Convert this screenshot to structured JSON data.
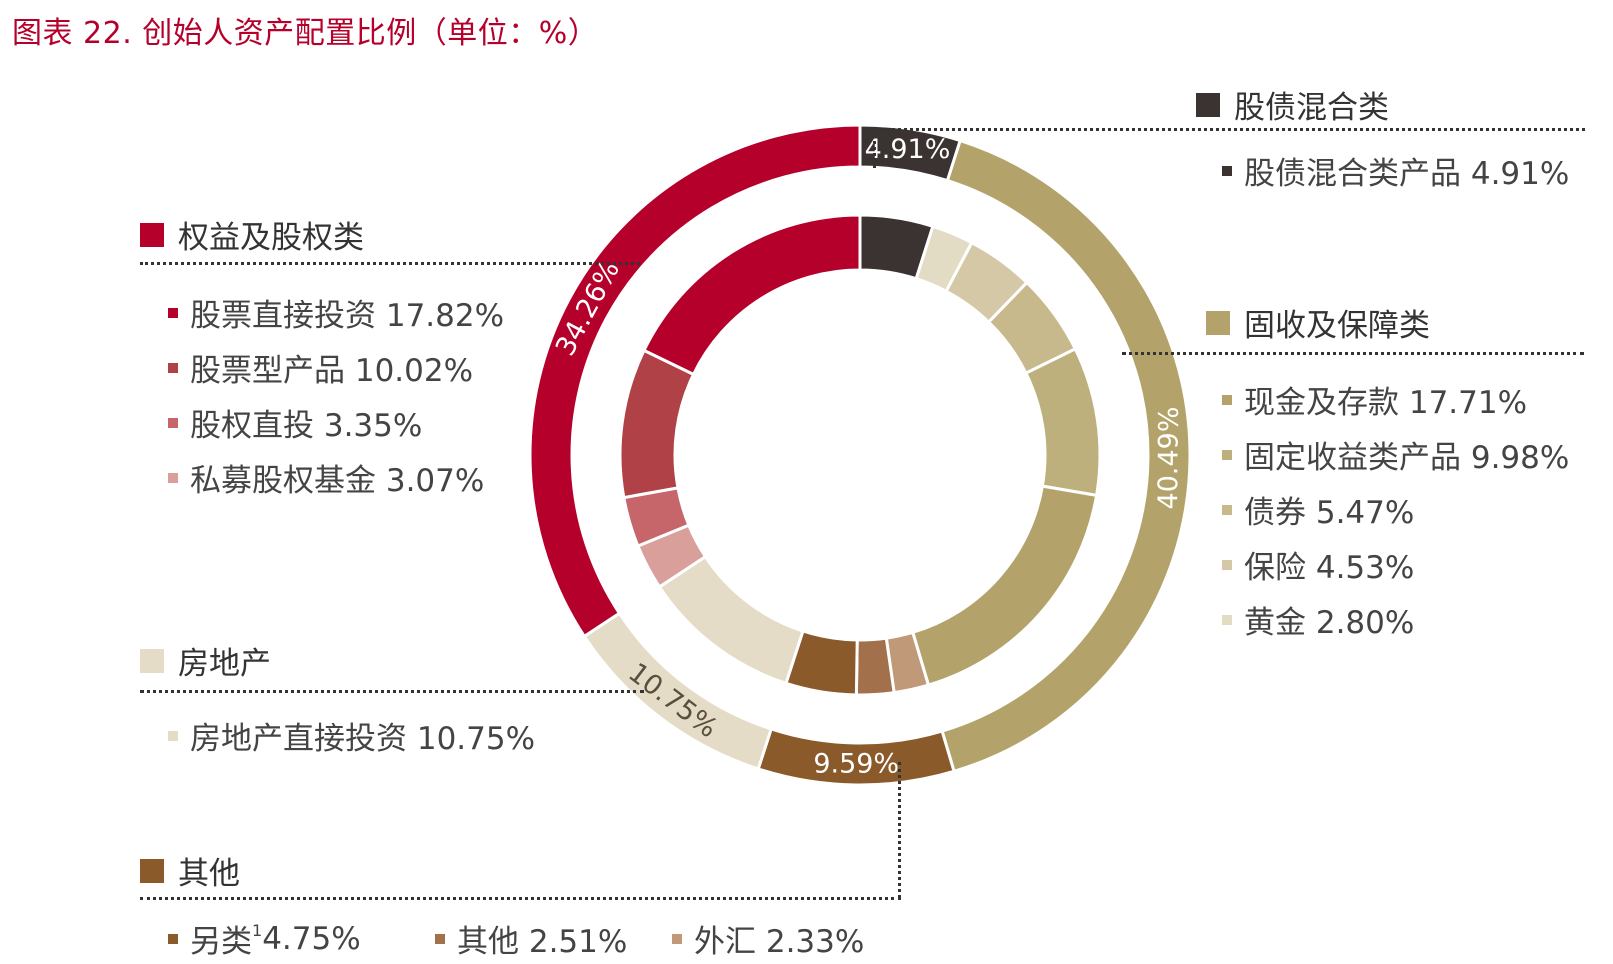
{
  "title": "图表 22. 创始人资产配置比例（单位：%）",
  "colors": {
    "title": "#b5002b",
    "equity": "#b5002b",
    "mixed": "#3a3331",
    "fixed": "#b3a36b",
    "realestate": "#e5dcc7",
    "other": "#8b5a2b"
  },
  "groups": {
    "mixed": {
      "name": "股债混合类",
      "items": [
        {
          "label": "股债混合类产品 4.91%"
        }
      ]
    },
    "equity": {
      "name": "权益及股权类",
      "items": [
        {
          "label": "股票直接投资 17.82%"
        },
        {
          "label": "股票型产品 10.02%"
        },
        {
          "label": "股权直投 3.35%"
        },
        {
          "label": "私募股权基金 3.07%"
        }
      ]
    },
    "fixed": {
      "name": "固收及保障类",
      "items": [
        {
          "label": "现金及存款 17.71%"
        },
        {
          "label": "固定收益类产品 9.98%"
        },
        {
          "label": "债券 5.47%"
        },
        {
          "label": "保险 4.53%"
        },
        {
          "label": "黄金 2.80%"
        }
      ]
    },
    "realestate": {
      "name": "房地产",
      "items": [
        {
          "label": "房地产直接投资 10.75%"
        }
      ]
    },
    "other": {
      "name": "其他",
      "items": [
        {
          "label": "另类",
          "sup": "1",
          "value": "4.75%"
        },
        {
          "label": "其他 2.51%"
        },
        {
          "label": "外汇 2.33%"
        }
      ]
    }
  },
  "chart_data": {
    "type": "pie",
    "subtype": "nested-donut",
    "title": "图表 22. 创始人资产配置比例（单位：%）",
    "outer_ring": [
      {
        "name": "股债混合类",
        "value": 4.91,
        "label": "4.91%",
        "color": "#3a3331"
      },
      {
        "name": "固收及保障类",
        "value": 40.49,
        "label": "40.49%",
        "color": "#b3a36b"
      },
      {
        "name": "其他",
        "value": 9.59,
        "label": "9.59%",
        "color": "#8b5a2b"
      },
      {
        "name": "房地产",
        "value": 10.75,
        "label": "10.75%",
        "color": "#e5dcc7"
      },
      {
        "name": "权益及股权类",
        "value": 34.26,
        "label": "34.26%",
        "color": "#b5002b"
      }
    ],
    "inner_ring": [
      {
        "name": "股债混合类产品",
        "value": 4.91,
        "color": "#3a3331"
      },
      {
        "name": "黄金",
        "value": 2.8,
        "color": "#e3dcc4"
      },
      {
        "name": "保险",
        "value": 4.53,
        "color": "#d4c8a6"
      },
      {
        "name": "债券",
        "value": 5.47,
        "color": "#c8b98c"
      },
      {
        "name": "固定收益类产品",
        "value": 9.98,
        "color": "#bdb07d"
      },
      {
        "name": "现金及存款",
        "value": 17.71,
        "color": "#b3a36b"
      },
      {
        "name": "外汇",
        "value": 2.33,
        "color": "#c09a78"
      },
      {
        "name": "其他",
        "value": 2.51,
        "color": "#a2704a"
      },
      {
        "name": "另类",
        "value": 4.75,
        "color": "#8b5a2b"
      },
      {
        "name": "房地产直接投资",
        "value": 10.75,
        "color": "#e5dcc7"
      },
      {
        "name": "私募股权基金",
        "value": 3.07,
        "color": "#d9a09b"
      },
      {
        "name": "股权直投",
        "value": 3.35,
        "color": "#c6666a"
      },
      {
        "name": "股票型产品",
        "value": 10.02,
        "color": "#b04247"
      },
      {
        "name": "股票直接投资",
        "value": 17.82,
        "color": "#b5002b"
      }
    ]
  }
}
